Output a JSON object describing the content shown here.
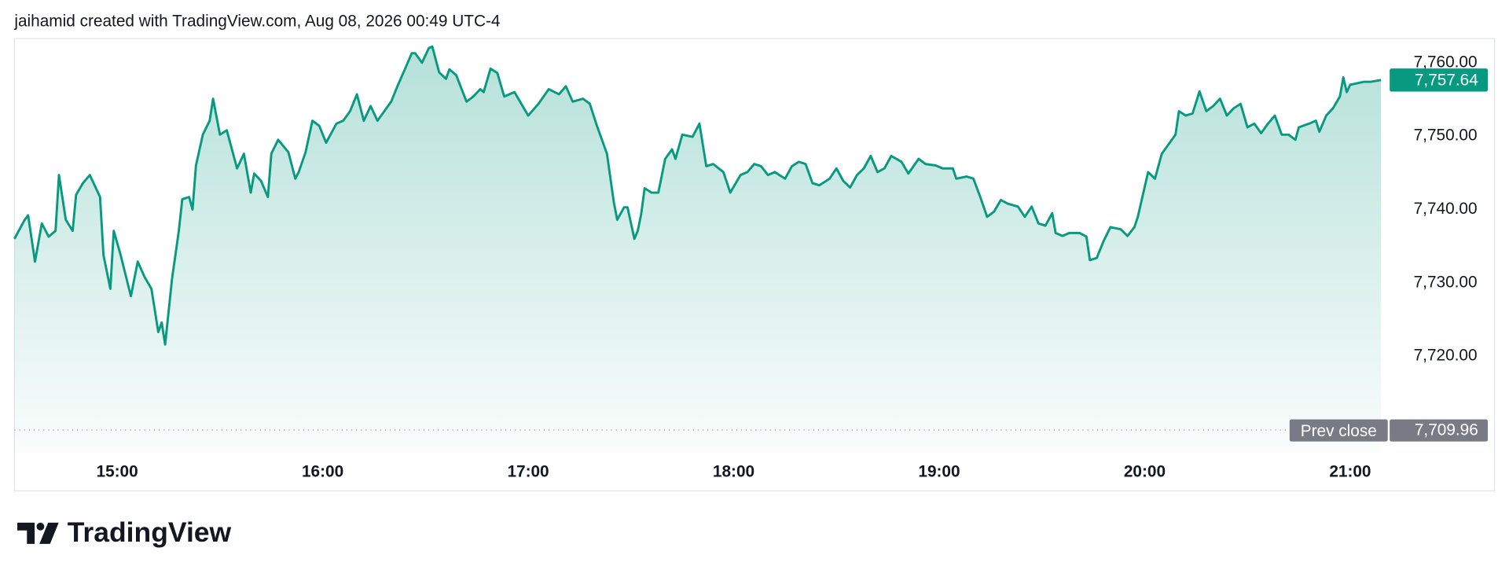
{
  "header": {
    "text": "jaihamid created with TradingView.com, Aug 08, 2026 00:49 UTC-4"
  },
  "footer": {
    "brand": "TradingView"
  },
  "chart_data": {
    "type": "area",
    "color": "#089981",
    "x": [
      "14:30",
      "14:33",
      "14:34",
      "14:36",
      "14:38",
      "14:40",
      "14:42",
      "14:43",
      "14:45",
      "14:47",
      "14:48",
      "14:50",
      "14:52",
      "14:55",
      "14:56",
      "14:58",
      "14:59",
      "15:01",
      "15:04",
      "15:06",
      "15:08",
      "15:10",
      "15:12",
      "15:13",
      "15:14",
      "15:16",
      "15:18",
      "15:19",
      "15:21",
      "15:22",
      "15:23",
      "15:25",
      "15:27",
      "15:28",
      "15:30",
      "15:32",
      "15:35",
      "15:37",
      "15:39",
      "15:40",
      "15:42",
      "15:44",
      "15:45",
      "15:47",
      "15:50",
      "15:52",
      "15:53",
      "15:55",
      "15:57",
      "15:59",
      "16:01",
      "16:04",
      "16:06",
      "16:08",
      "16:10",
      "16:12",
      "16:14",
      "16:16",
      "16:18",
      "16:20",
      "16:22",
      "16:24",
      "16:26",
      "16:27",
      "16:29",
      "16:31",
      "16:32",
      "16:34",
      "16:36",
      "16:37",
      "16:39",
      "16:42",
      "16:44",
      "16:46",
      "16:47",
      "16:49",
      "16:51",
      "16:53",
      "16:56",
      "16:58",
      "17:00",
      "17:03",
      "17:06",
      "17:09",
      "17:11",
      "17:13",
      "17:16",
      "17:18",
      "17:20",
      "17:23",
      "17:25",
      "17:26",
      "17:28",
      "17:29",
      "17:31",
      "17:32",
      "17:33",
      "17:34",
      "17:36",
      "17:38",
      "17:40",
      "17:42",
      "17:43",
      "17:45",
      "17:48",
      "17:50",
      "17:52",
      "17:54",
      "17:57",
      "17:59",
      "18:02",
      "18:04",
      "18:06",
      "18:08",
      "18:10",
      "18:12",
      "18:15",
      "18:17",
      "18:19",
      "18:21",
      "18:23",
      "18:25",
      "18:28",
      "18:30",
      "18:32",
      "18:34",
      "18:36",
      "18:38",
      "18:40",
      "18:42",
      "18:44",
      "18:46",
      "18:49",
      "18:51",
      "18:54",
      "18:56",
      "18:59",
      "19:01",
      "19:04",
      "19:05",
      "19:08",
      "19:10",
      "19:12",
      "19:14",
      "19:16",
      "19:18",
      "19:20",
      "19:23",
      "19:25",
      "19:27",
      "19:29",
      "19:31",
      "19:33",
      "19:34",
      "19:36",
      "19:38",
      "19:41",
      "19:43",
      "19:44",
      "19:46",
      "19:48",
      "19:50",
      "19:53",
      "19:55",
      "19:57",
      "19:58",
      "20:01",
      "20:03",
      "20:05",
      "20:07",
      "20:09",
      "20:10",
      "20:12",
      "20:14",
      "20:16",
      "20:18",
      "20:20",
      "20:22",
      "20:24",
      "20:26",
      "20:28",
      "20:30",
      "20:32",
      "20:34",
      "20:36",
      "20:38",
      "20:40",
      "20:42",
      "20:44",
      "20:45",
      "20:48",
      "20:50",
      "20:51",
      "20:53",
      "20:55",
      "20:57",
      "20:58",
      "20:59",
      "21:00",
      "21:04",
      "21:06",
      "21:09"
    ],
    "values": [
      7736.0,
      7738.6,
      7739.2,
      7732.9,
      7738.1,
      7736.3,
      7737.1,
      7744.7,
      7738.6,
      7737.1,
      7742.0,
      7743.6,
      7744.7,
      7741.7,
      7733.8,
      7729.2,
      7737.1,
      7733.8,
      7728.2,
      7732.9,
      7730.8,
      7729.2,
      7723.3,
      7724.6,
      7721.6,
      7730.5,
      7737.1,
      7741.4,
      7741.7,
      7740.0,
      7746.0,
      7750.2,
      7752.1,
      7755.1,
      7750.2,
      7750.8,
      7745.6,
      7747.6,
      7742.3,
      7744.9,
      7743.9,
      7741.7,
      7747.6,
      7749.5,
      7747.8,
      7744.2,
      7745.1,
      7747.8,
      7752.1,
      7751.4,
      7749.1,
      7751.7,
      7752.1,
      7753.4,
      7755.7,
      7752.1,
      7754.1,
      7752.1,
      7753.4,
      7754.7,
      7757.0,
      7759.1,
      7761.3,
      7761.3,
      7760.0,
      7762.0,
      7762.2,
      7758.7,
      7757.8,
      7759.1,
      7758.3,
      7754.7,
      7755.4,
      7756.4,
      7756.0,
      7759.2,
      7758.6,
      7755.4,
      7756.0,
      7754.4,
      7752.8,
      7754.4,
      7756.4,
      7755.7,
      7756.8,
      7754.7,
      7755.1,
      7754.4,
      7751.5,
      7747.6,
      7741.0,
      7738.6,
      7740.3,
      7740.3,
      7736.0,
      7737.1,
      7739.4,
      7742.9,
      7742.3,
      7742.3,
      7746.9,
      7748.2,
      7746.9,
      7750.2,
      7749.9,
      7751.7,
      7745.9,
      7746.2,
      7745.1,
      7742.3,
      7744.7,
      7745.1,
      7746.2,
      7745.9,
      7744.7,
      7745.1,
      7744.2,
      7745.9,
      7746.5,
      7746.2,
      7743.6,
      7743.3,
      7744.2,
      7745.6,
      7743.9,
      7743.0,
      7744.7,
      7745.6,
      7747.3,
      7745.1,
      7745.6,
      7747.3,
      7746.5,
      7744.9,
      7746.9,
      7746.2,
      7746.0,
      7745.6,
      7745.6,
      7744.2,
      7744.5,
      7744.2,
      7741.7,
      7739.0,
      7739.7,
      7741.3,
      7740.8,
      7740.4,
      7739.0,
      7740.4,
      7738.1,
      7737.8,
      7739.5,
      7736.8,
      7736.4,
      7736.8,
      7736.8,
      7736.3,
      7733.1,
      7733.4,
      7735.7,
      7737.6,
      7737.3,
      7736.4,
      7737.6,
      7739.0,
      7745.1,
      7744.2,
      7747.6,
      7748.9,
      7750.2,
      7753.4,
      7752.8,
      7753.1,
      7756.1,
      7753.4,
      7754.1,
      7755.1,
      7752.8,
      7753.8,
      7754.4,
      7751.2,
      7751.7,
      7750.4,
      7751.7,
      7752.8,
      7750.2,
      7750.2,
      7749.5,
      7751.2,
      7751.7,
      7752.1,
      7750.6,
      7752.8,
      7753.8,
      7755.4,
      7758.0,
      7756.0,
      7757.0,
      7757.4,
      7757.4,
      7757.64
    ],
    "xlim": [
      "14:30",
      "21:09"
    ],
    "xticks": [
      "15:00",
      "16:00",
      "17:00",
      "18:00",
      "19:00",
      "20:00",
      "21:00"
    ],
    "ylim": [
      7706.9,
      7763.3
    ],
    "yticks": [
      {
        "value": 7720,
        "label": "7,720.00"
      },
      {
        "value": 7730,
        "label": "7,730.00"
      },
      {
        "value": 7740,
        "label": "7,740.00"
      },
      {
        "value": 7750,
        "label": "7,750.00"
      },
      {
        "value": 7760,
        "label": "7,760.00"
      }
    ],
    "last_price": {
      "value": 7757.64,
      "label": "7,757.64",
      "color": "#089981"
    },
    "prev_close": {
      "text": "Prev close",
      "value": 7709.96,
      "label": "7,709.96",
      "color": "#787b86"
    }
  }
}
